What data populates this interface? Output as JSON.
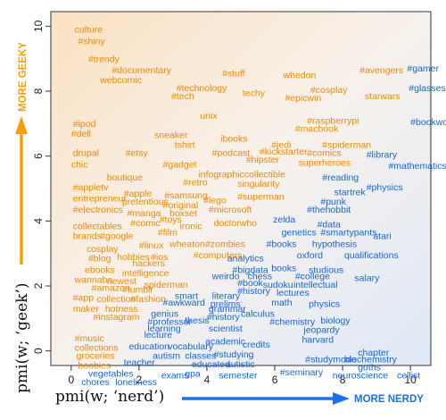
{
  "chart_data": {
    "type": "scatter",
    "xlabel": "pmi(w; ‘nerd’)",
    "ylabel": "pmi(w; ‘geek’)",
    "xlim": [
      -0.6,
      10.6
    ],
    "ylim": [
      -0.45,
      10.45
    ],
    "xticks": [
      "0",
      "2",
      "4",
      "6",
      "8",
      "10"
    ],
    "yticks": [
      "0",
      "2",
      "4",
      "6",
      "8",
      "10"
    ],
    "geeky_arrow_label": "MORE GEEKY",
    "nerdy_arrow_label": "MORE NERDY",
    "colors": {
      "geeky": "#f08a00",
      "nerdy": "#1565d8",
      "geeky_arrow": "#f5a000",
      "nerdy_arrow": "#1a72e8"
    },
    "points": [
      {
        "word": "culture",
        "x": 0.1,
        "y": 9.8,
        "group": "geeky"
      },
      {
        "word": "#shiny",
        "x": 0.2,
        "y": 9.45,
        "group": "geeky"
      },
      {
        "word": "#trendy",
        "x": 0.5,
        "y": 8.9,
        "group": "geeky"
      },
      {
        "word": "#documentary",
        "x": 1.2,
        "y": 8.55,
        "group": "geeky"
      },
      {
        "word": "webcomic",
        "x": 0.85,
        "y": 8.25,
        "group": "geeky"
      },
      {
        "word": "#stuff",
        "x": 4.45,
        "y": 8.45,
        "group": "geeky"
      },
      {
        "word": "whedon",
        "x": 6.25,
        "y": 8.4,
        "group": "geeky"
      },
      {
        "word": "#avengers",
        "x": 8.5,
        "y": 8.55,
        "group": "geeky"
      },
      {
        "word": "#gamer",
        "x": 9.9,
        "y": 8.6,
        "group": "nerdy"
      },
      {
        "word": "#technology",
        "x": 3.1,
        "y": 8.0,
        "group": "geeky"
      },
      {
        "word": "#tech",
        "x": 2.95,
        "y": 7.75,
        "group": "geeky"
      },
      {
        "word": "techy",
        "x": 5.05,
        "y": 7.85,
        "group": "geeky"
      },
      {
        "word": "#cosplay",
        "x": 7.05,
        "y": 7.95,
        "group": "geeky"
      },
      {
        "word": "#epicwin",
        "x": 6.3,
        "y": 7.7,
        "group": "geeky"
      },
      {
        "word": "starwars",
        "x": 8.65,
        "y": 7.75,
        "group": "geeky"
      },
      {
        "word": "#glasses",
        "x": 9.95,
        "y": 8.0,
        "group": "nerdy"
      },
      {
        "word": "unix",
        "x": 3.8,
        "y": 7.15,
        "group": "geeky"
      },
      {
        "word": "#raspberrypi",
        "x": 6.95,
        "y": 7.0,
        "group": "geeky"
      },
      {
        "word": "#macbook",
        "x": 6.6,
        "y": 6.75,
        "group": "geeky"
      },
      {
        "word": "#bookworm",
        "x": 10.0,
        "y": 6.95,
        "group": "nerdy"
      },
      {
        "word": "#ipod",
        "x": 0.05,
        "y": 6.9,
        "group": "geeky"
      },
      {
        "word": "#dell",
        "x": 0.0,
        "y": 6.6,
        "group": "geeky"
      },
      {
        "word": "sneaker",
        "x": 2.45,
        "y": 6.55,
        "group": "geeky"
      },
      {
        "word": "ibooks",
        "x": 4.4,
        "y": 6.45,
        "group": "geeky"
      },
      {
        "word": "tshirt",
        "x": 3.05,
        "y": 6.25,
        "group": "geeky"
      },
      {
        "word": "#jedi",
        "x": 5.9,
        "y": 6.25,
        "group": "geeky"
      },
      {
        "word": "#spiderman",
        "x": 7.4,
        "y": 6.25,
        "group": "geeky"
      },
      {
        "word": "drupal",
        "x": 0.05,
        "y": 6.0,
        "group": "geeky"
      },
      {
        "word": "#etsy",
        "x": 1.6,
        "y": 6.0,
        "group": "geeky"
      },
      {
        "word": "#podcast",
        "x": 4.15,
        "y": 6.0,
        "group": "geeky"
      },
      {
        "word": "#kickstarter",
        "x": 5.55,
        "y": 6.05,
        "group": "geeky"
      },
      {
        "word": "#comics",
        "x": 6.95,
        "y": 6.0,
        "group": "geeky"
      },
      {
        "word": "#library",
        "x": 8.7,
        "y": 5.95,
        "group": "nerdy"
      },
      {
        "word": "chic",
        "x": 0.0,
        "y": 5.65,
        "group": "geeky"
      },
      {
        "word": "#gadget",
        "x": 2.7,
        "y": 5.65,
        "group": "geeky"
      },
      {
        "word": "#hipster",
        "x": 5.15,
        "y": 5.8,
        "group": "geeky"
      },
      {
        "word": "superheroes",
        "x": 6.7,
        "y": 5.7,
        "group": "geeky"
      },
      {
        "word": "#mathematics",
        "x": 9.35,
        "y": 5.6,
        "group": "nerdy"
      },
      {
        "word": "infographic",
        "x": 3.75,
        "y": 5.35,
        "group": "geeky"
      },
      {
        "word": "collectible",
        "x": 5.1,
        "y": 5.35,
        "group": "geeky"
      },
      {
        "word": "boutique",
        "x": 1.05,
        "y": 5.25,
        "group": "geeky"
      },
      {
        "word": "#retro",
        "x": 3.3,
        "y": 5.1,
        "group": "geeky"
      },
      {
        "word": "singularity",
        "x": 4.9,
        "y": 5.05,
        "group": "geeky"
      },
      {
        "word": "#reading",
        "x": 7.4,
        "y": 5.25,
        "group": "nerdy"
      },
      {
        "word": "#appletv",
        "x": 0.05,
        "y": 4.95,
        "group": "geeky"
      },
      {
        "word": "#apple",
        "x": 1.55,
        "y": 4.75,
        "group": "geeky"
      },
      {
        "word": "#samsung",
        "x": 2.75,
        "y": 4.7,
        "group": "geeky"
      },
      {
        "word": "#physics",
        "x": 8.7,
        "y": 4.95,
        "group": "nerdy"
      },
      {
        "word": "entrepreneur",
        "x": 0.05,
        "y": 4.6,
        "group": "geeky"
      },
      {
        "word": "pretentious",
        "x": 1.5,
        "y": 4.5,
        "group": "geeky"
      },
      {
        "word": "#superman",
        "x": 4.9,
        "y": 4.65,
        "group": "geeky"
      },
      {
        "word": "startrek",
        "x": 7.75,
        "y": 4.8,
        "group": "nerdy"
      },
      {
        "word": "#original",
        "x": 2.7,
        "y": 4.4,
        "group": "geeky"
      },
      {
        "word": "#lego",
        "x": 3.9,
        "y": 4.55,
        "group": "geeky"
      },
      {
        "word": "#punk",
        "x": 7.35,
        "y": 4.5,
        "group": "nerdy"
      },
      {
        "word": "#electronics",
        "x": 0.05,
        "y": 4.25,
        "group": "geeky"
      },
      {
        "word": "#manga",
        "x": 1.65,
        "y": 4.15,
        "group": "geeky"
      },
      {
        "word": "boxset",
        "x": 2.9,
        "y": 4.15,
        "group": "geeky"
      },
      {
        "word": "#microsoft",
        "x": 4.05,
        "y": 4.25,
        "group": "geeky"
      },
      {
        "word": "#thehobbit",
        "x": 6.95,
        "y": 4.25,
        "group": "nerdy"
      },
      {
        "word": "#comic",
        "x": 1.75,
        "y": 3.85,
        "group": "geeky"
      },
      {
        "word": "#toys",
        "x": 2.6,
        "y": 3.95,
        "group": "geeky"
      },
      {
        "word": "ironic",
        "x": 3.2,
        "y": 3.75,
        "group": "geeky"
      },
      {
        "word": "doctorwho",
        "x": 4.2,
        "y": 3.85,
        "group": "geeky"
      },
      {
        "word": "zelda",
        "x": 5.95,
        "y": 3.95,
        "group": "nerdy"
      },
      {
        "word": "#data",
        "x": 7.25,
        "y": 3.8,
        "group": "nerdy"
      },
      {
        "word": "collectables",
        "x": 0.05,
        "y": 3.75,
        "group": "geeky"
      },
      {
        "word": "genetics",
        "x": 6.2,
        "y": 3.55,
        "group": "nerdy"
      },
      {
        "word": "#smartypants",
        "x": 7.35,
        "y": 3.55,
        "group": "nerdy"
      },
      {
        "word": "brands",
        "x": 0.05,
        "y": 3.45,
        "group": "geeky"
      },
      {
        "word": "#google",
        "x": 0.85,
        "y": 3.45,
        "group": "geeky"
      },
      {
        "word": "#film",
        "x": 2.55,
        "y": 3.55,
        "group": "geeky"
      },
      {
        "word": "atari",
        "x": 8.9,
        "y": 3.45,
        "group": "nerdy"
      },
      {
        "word": "#linux",
        "x": 2.0,
        "y": 3.15,
        "group": "geeky"
      },
      {
        "word": "wheaton",
        "x": 2.9,
        "y": 3.2,
        "group": "geeky"
      },
      {
        "word": "#zombies",
        "x": 3.95,
        "y": 3.2,
        "group": "geeky"
      },
      {
        "word": "#books",
        "x": 5.75,
        "y": 3.2,
        "group": "nerdy"
      },
      {
        "word": "hypothesis",
        "x": 7.1,
        "y": 3.2,
        "group": "nerdy"
      },
      {
        "word": "cosplay",
        "x": 0.45,
        "y": 3.05,
        "group": "geeky"
      },
      {
        "word": "hobbies",
        "x": 1.35,
        "y": 2.8,
        "group": "geeky"
      },
      {
        "word": "#ios",
        "x": 2.35,
        "y": 2.8,
        "group": "geeky"
      },
      {
        "word": "#computers",
        "x": 3.6,
        "y": 2.85,
        "group": "geeky"
      },
      {
        "word": "analytics",
        "x": 4.6,
        "y": 2.75,
        "group": "nerdy"
      },
      {
        "word": "oxford",
        "x": 6.65,
        "y": 2.85,
        "group": "nerdy"
      },
      {
        "word": "qualifications",
        "x": 8.05,
        "y": 2.85,
        "group": "nerdy"
      },
      {
        "word": "#blog",
        "x": 0.5,
        "y": 2.75,
        "group": "geeky"
      },
      {
        "word": "hackers",
        "x": 1.8,
        "y": 2.6,
        "group": "geeky"
      },
      {
        "word": "#bigdata",
        "x": 4.75,
        "y": 2.4,
        "group": "nerdy"
      },
      {
        "word": "books",
        "x": 5.9,
        "y": 2.45,
        "group": "nerdy"
      },
      {
        "word": "studious",
        "x": 7.0,
        "y": 2.4,
        "group": "nerdy"
      },
      {
        "word": "ebooks",
        "x": 0.4,
        "y": 2.4,
        "group": "geeky"
      },
      {
        "word": "intelligence",
        "x": 1.5,
        "y": 2.3,
        "group": "geeky"
      },
      {
        "word": "chess",
        "x": 5.2,
        "y": 2.2,
        "group": "nerdy"
      },
      {
        "word": "#college",
        "x": 6.6,
        "y": 2.2,
        "group": "nerdy"
      },
      {
        "word": "salary",
        "x": 8.35,
        "y": 2.15,
        "group": "nerdy"
      },
      {
        "word": "wannabe",
        "x": 0.1,
        "y": 2.1,
        "group": "geeky"
      },
      {
        "word": "newest",
        "x": 1.05,
        "y": 2.05,
        "group": "geeky"
      },
      {
        "word": "spiderman",
        "x": 2.15,
        "y": 1.95,
        "group": "geeky"
      },
      {
        "word": "weirdo",
        "x": 4.15,
        "y": 2.2,
        "group": "nerdy"
      },
      {
        "word": "#book",
        "x": 4.9,
        "y": 2.0,
        "group": "nerdy"
      },
      {
        "word": "sudoku",
        "x": 5.65,
        "y": 1.95,
        "group": "nerdy"
      },
      {
        "word": "intellectual",
        "x": 6.55,
        "y": 1.95,
        "group": "nerdy"
      },
      {
        "word": "#amazon",
        "x": 0.6,
        "y": 1.85,
        "group": "geeky"
      },
      {
        "word": "#tumblr",
        "x": 1.5,
        "y": 1.8,
        "group": "geeky"
      },
      {
        "word": "#history",
        "x": 4.9,
        "y": 1.75,
        "group": "nerdy"
      },
      {
        "word": "lectures",
        "x": 6.05,
        "y": 1.7,
        "group": "nerdy"
      },
      {
        "word": "#app",
        "x": 0.05,
        "y": 1.55,
        "group": "geeky"
      },
      {
        "word": "collection",
        "x": 0.75,
        "y": 1.5,
        "group": "geeky"
      },
      {
        "word": "#fashion",
        "x": 1.75,
        "y": 1.5,
        "group": "geeky"
      },
      {
        "word": "smart",
        "x": 3.05,
        "y": 1.6,
        "group": "nerdy"
      },
      {
        "word": "literary",
        "x": 4.15,
        "y": 1.6,
        "group": "nerdy"
      },
      {
        "word": "math",
        "x": 5.9,
        "y": 1.4,
        "group": "nerdy"
      },
      {
        "word": "physics",
        "x": 7.0,
        "y": 1.35,
        "group": "nerdy"
      },
      {
        "word": "maker",
        "x": 0.05,
        "y": 1.2,
        "group": "geeky"
      },
      {
        "word": "hotness",
        "x": 1.0,
        "y": 1.2,
        "group": "geeky"
      },
      {
        "word": "#awkward",
        "x": 2.7,
        "y": 1.4,
        "group": "nerdy"
      },
      {
        "word": "prelims",
        "x": 4.1,
        "y": 1.35,
        "group": "nerdy"
      },
      {
        "word": "#instagram",
        "x": 0.65,
        "y": 0.95,
        "group": "geeky"
      },
      {
        "word": "genius",
        "x": 2.35,
        "y": 1.05,
        "group": "nerdy"
      },
      {
        "word": "grammar",
        "x": 4.05,
        "y": 1.2,
        "group": "nerdy"
      },
      {
        "word": "calculus",
        "x": 5.0,
        "y": 1.05,
        "group": "nerdy"
      },
      {
        "word": "#chemistry",
        "x": 5.85,
        "y": 0.8,
        "group": "nerdy"
      },
      {
        "word": "biology",
        "x": 7.35,
        "y": 0.85,
        "group": "nerdy"
      },
      {
        "word": "thesis",
        "x": 3.35,
        "y": 0.85,
        "group": "nerdy"
      },
      {
        "word": "#history",
        "x": 4.0,
        "y": 0.95,
        "group": "nerdy"
      },
      {
        "word": "#professor",
        "x": 2.25,
        "y": 0.8,
        "group": "nerdy"
      },
      {
        "word": "learning",
        "x": 2.25,
        "y": 0.6,
        "group": "nerdy"
      },
      {
        "word": "scientist",
        "x": 4.05,
        "y": 0.6,
        "group": "nerdy"
      },
      {
        "word": "jeopardy",
        "x": 6.85,
        "y": 0.55,
        "group": "nerdy"
      },
      {
        "word": "#music",
        "x": 0.1,
        "y": 0.3,
        "group": "geeky"
      },
      {
        "word": "lecture",
        "x": 2.15,
        "y": 0.4,
        "group": "nerdy"
      },
      {
        "word": "academic",
        "x": 3.95,
        "y": 0.2,
        "group": "nerdy"
      },
      {
        "word": "credits",
        "x": 5.05,
        "y": 0.1,
        "group": "nerdy"
      },
      {
        "word": "harvard",
        "x": 6.8,
        "y": 0.25,
        "group": "nerdy"
      },
      {
        "word": "collections",
        "x": 0.1,
        "y": 0.0,
        "group": "geeky"
      },
      {
        "word": "education",
        "x": 1.7,
        "y": 0.05,
        "group": "nerdy"
      },
      {
        "word": "vocabulary",
        "x": 2.85,
        "y": 0.05,
        "group": "nerdy"
      },
      {
        "word": "chapter",
        "x": 8.45,
        "y": -0.15,
        "group": "nerdy"
      },
      {
        "word": "groceries",
        "x": 0.15,
        "y": -0.25,
        "group": "geeky"
      },
      {
        "word": "#studying",
        "x": 4.2,
        "y": -0.2,
        "group": "nerdy"
      },
      {
        "word": "autism",
        "x": 2.4,
        "y": -0.25,
        "group": "nerdy"
      },
      {
        "word": "classes",
        "x": 3.35,
        "y": -0.25,
        "group": "nerdy"
      },
      {
        "word": "#studymode",
        "x": 6.9,
        "y": -0.35,
        "group": "nerdy"
      },
      {
        "word": "biochemistry",
        "x": 8.05,
        "y": -0.35,
        "group": "nerdy"
      },
      {
        "word": "teacher",
        "x": 1.55,
        "y": -0.45,
        "group": "nerdy"
      },
      {
        "word": "educated",
        "x": 3.55,
        "y": -0.5,
        "group": "nerdy"
      },
      {
        "word": "autistic",
        "x": 4.55,
        "y": -0.5,
        "group": "nerdy"
      },
      {
        "word": "goths",
        "x": 8.45,
        "y": -0.6,
        "group": "nerdy"
      },
      {
        "word": "boobies",
        "x": 0.2,
        "y": -0.55,
        "group": "geeky"
      },
      {
        "word": "vegetables",
        "x": 0.5,
        "y": -0.8,
        "group": "nerdy"
      },
      {
        "word": "exams",
        "x": 2.65,
        "y": -0.85,
        "group": "nerdy"
      },
      {
        "word": "gpa",
        "x": 3.35,
        "y": -0.8,
        "group": "nerdy"
      },
      {
        "word": "semester",
        "x": 4.35,
        "y": -0.85,
        "group": "nerdy"
      },
      {
        "word": "#seminary",
        "x": 6.15,
        "y": -0.75,
        "group": "nerdy"
      },
      {
        "word": "neuroscience",
        "x": 7.7,
        "y": -0.85,
        "group": "nerdy"
      },
      {
        "word": "cellist",
        "x": 9.6,
        "y": -0.85,
        "group": "nerdy"
      },
      {
        "word": "chores",
        "x": 0.3,
        "y": -1.05,
        "group": "nerdy"
      },
      {
        "word": "loneliness",
        "x": 1.3,
        "y": -1.05,
        "group": "nerdy"
      }
    ]
  }
}
